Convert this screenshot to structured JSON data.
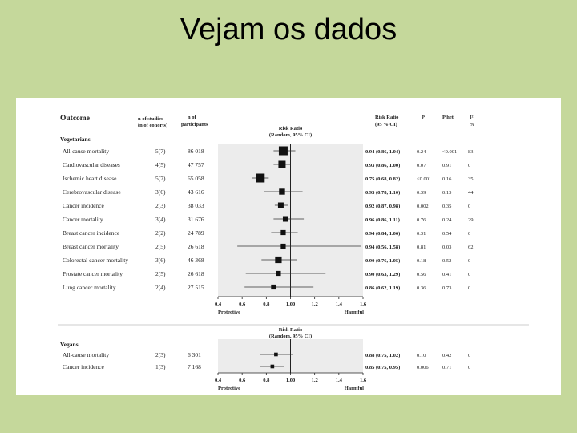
{
  "slide": {
    "title": "Vejam os dados"
  },
  "headers": {
    "outcome": "Outcome",
    "studies_line1": "n of studies",
    "studies_line2": "(n of cohorts)",
    "participants_line1": "n of",
    "participants_line2": "participants",
    "rr_line1": "Risk Ratio",
    "rr_line2": "(95 % CI)",
    "p": "P",
    "p_het": "P het",
    "i2_line1": "I²",
    "i2_line2": "%"
  },
  "chart_data": [
    {
      "type": "forest",
      "group": "Vegetarians",
      "model_line1": "Risk Ratio",
      "model_line2": "(Random, 95% CI)",
      "xlim": [
        0.4,
        1.6
      ],
      "ticks": [
        "0.4",
        "0.6",
        "0.8",
        "1.00",
        "1.2",
        "1.4",
        "1.6"
      ],
      "reference_line": 1.0,
      "xlabel_left": "Protective",
      "xlabel_right": "Harmful",
      "rows": [
        {
          "outcome": "All-cause mortality",
          "studies": "5(7)",
          "participants": "86 018",
          "rr": 0.94,
          "lo": 0.86,
          "hi": 1.04,
          "rr_text": "0.94 (0.86, 1.04)",
          "p": "0.24",
          "p_het": "<0.001",
          "i2": "83",
          "weight": 1.0
        },
        {
          "outcome": "Cardiovascular diseases",
          "studies": "4(5)",
          "participants": "47 757",
          "rr": 0.93,
          "lo": 0.86,
          "hi": 1.0,
          "rr_text": "0.93 (0.86, 1.00)",
          "p": "0.07",
          "p_het": "0.91",
          "i2": "0",
          "weight": 0.75
        },
        {
          "outcome": "Ischemic heart disease",
          "studies": "5(7)",
          "participants": "65 058",
          "rr": 0.75,
          "lo": 0.68,
          "hi": 0.82,
          "rr_text": "0.75 (0.68, 0.82)",
          "p": "<0.001",
          "p_het": "0.16",
          "i2": "35",
          "weight": 1.0
        },
        {
          "outcome": "Cerebrovascular disease",
          "studies": "3(6)",
          "participants": "43 616",
          "rr": 0.93,
          "lo": 0.78,
          "hi": 1.1,
          "rr_text": "0.93 (0.78, 1.10)",
          "p": "0.39",
          "p_het": "0.13",
          "i2": "44",
          "weight": 0.55
        },
        {
          "outcome": "Cancer incidence",
          "studies": "2(3)",
          "participants": "38 033",
          "rr": 0.92,
          "lo": 0.87,
          "hi": 0.98,
          "rr_text": "0.92 (0.87, 0.98)",
          "p": "0.002",
          "p_het": "0.35",
          "i2": "0",
          "weight": 0.5
        },
        {
          "outcome": "Cancer mortality",
          "studies": "3(4)",
          "participants": "31 676",
          "rr": 0.96,
          "lo": 0.86,
          "hi": 1.11,
          "rr_text": "0.96 (0.86, 1.11)",
          "p": "0.76",
          "p_het": "0.24",
          "i2": "29",
          "weight": 0.5
        },
        {
          "outcome": "Breast cancer incidence",
          "studies": "2(2)",
          "participants": "24 789",
          "rr": 0.94,
          "lo": 0.84,
          "hi": 1.06,
          "rr_text": "0.94 (0.84, 1.06)",
          "p": "0.31",
          "p_het": "0.54",
          "i2": "0",
          "weight": 0.4
        },
        {
          "outcome": "Breast cancer mortality",
          "studies": "2(5)",
          "participants": "26 618",
          "rr": 0.94,
          "lo": 0.56,
          "hi": 1.58,
          "rr_text": "0.94 (0.56, 1.58)",
          "p": "0.81",
          "p_het": "0.03",
          "i2": "62",
          "weight": 0.4
        },
        {
          "outcome": "Colorectal cancer mortality",
          "studies": "3(6)",
          "participants": "46 368",
          "rr": 0.9,
          "lo": 0.76,
          "hi": 1.05,
          "rr_text": "0.90 (0.76, 1.05)",
          "p": "0.18",
          "p_het": "0.52",
          "i2": "0",
          "weight": 0.65
        },
        {
          "outcome": "Prostate cancer mortality",
          "studies": "2(5)",
          "participants": "26 618",
          "rr": 0.9,
          "lo": 0.63,
          "hi": 1.29,
          "rr_text": "0.90 (0.63, 1.29)",
          "p": "0.56",
          "p_het": "0.41",
          "i2": "0",
          "weight": 0.4
        },
        {
          "outcome": "Lung cancer mortality",
          "studies": "2(4)",
          "participants": "27 515",
          "rr": 0.86,
          "lo": 0.62,
          "hi": 1.19,
          "rr_text": "0.86 (0.62, 1.19)",
          "p": "0.36",
          "p_het": "0.73",
          "i2": "0",
          "weight": 0.4
        }
      ]
    },
    {
      "type": "forest",
      "group": "Vegans",
      "model_line1": "Risk Ratio",
      "model_line2": "(Random, 95% CI)",
      "xlim": [
        0.4,
        1.6
      ],
      "ticks": [
        "0.4",
        "0.6",
        "0.8",
        "1.00",
        "1.2",
        "1.4",
        "1.6"
      ],
      "reference_line": 1.0,
      "xlabel_left": "Protective",
      "xlabel_right": "Harmful",
      "rows": [
        {
          "outcome": "All-cause mortality",
          "studies": "2(3)",
          "participants": "6 301",
          "rr": 0.88,
          "lo": 0.75,
          "hi": 1.02,
          "rr_text": "0.88 (0.75, 1.02)",
          "p": "0.10",
          "p_het": "0.42",
          "i2": "0",
          "weight": 0.2
        },
        {
          "outcome": "Cancer incidence",
          "studies": "1(3)",
          "participants": "7 168",
          "rr": 0.85,
          "lo": 0.75,
          "hi": 0.95,
          "rr_text": "0.85 (0.75, 0.95)",
          "p": "0.006",
          "p_het": "0.71",
          "i2": "0",
          "weight": 0.2
        }
      ]
    }
  ]
}
